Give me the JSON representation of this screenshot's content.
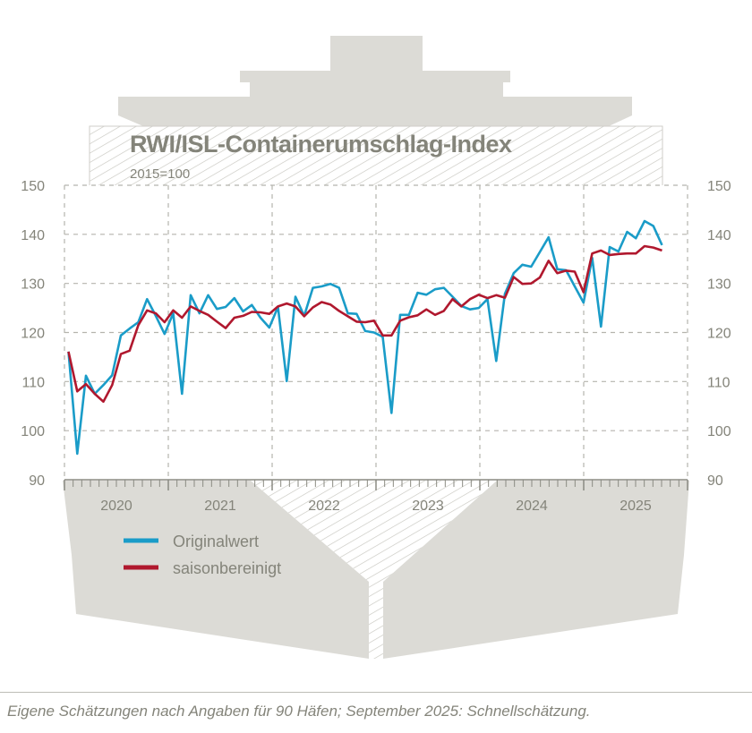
{
  "chart_data": {
    "type": "line",
    "title": "RWI/ISL-Containerumschlag-Index",
    "subtitle": "2015=100",
    "xlabel": "",
    "ylabel": "",
    "ylim": [
      90,
      150
    ],
    "yticks": [
      "90",
      "100",
      "110",
      "120",
      "130",
      "140",
      "150"
    ],
    "xtick_labels": [
      "2020",
      "2021",
      "2022",
      "2023",
      "2024",
      "2025"
    ],
    "x_start": "2020-01",
    "x_end": "2025-09",
    "frequency": "monthly",
    "grid": true,
    "legend_position": "bottom-left",
    "series": [
      {
        "name": "Originalwert",
        "color": "#1a9cc8",
        "values": [
          116.1,
          95.3,
          111.2,
          107.5,
          109.3,
          111.3,
          119.4,
          120.8,
          122.1,
          126.8,
          123.4,
          119.7,
          123.9,
          107.5,
          127.6,
          123.9,
          127.6,
          124.8,
          125.2,
          127.0,
          124.3,
          125.6,
          123.0,
          121.0,
          125.2,
          110.1,
          127.3,
          123.4,
          129.1,
          129.4,
          129.9,
          129.1,
          123.9,
          123.8,
          120.3,
          120.0,
          119.1,
          103.6,
          123.6,
          123.6,
          128.1,
          127.7,
          128.8,
          129.1,
          127.3,
          125.4,
          124.7,
          125.0,
          126.8,
          114.2,
          127.9,
          132.1,
          133.8,
          133.4,
          136.4,
          139.4,
          132.9,
          132.7,
          129.4,
          126.1,
          135.2,
          121.2,
          137.4,
          136.5,
          140.5,
          139.2,
          142.7,
          141.7,
          137.8
        ]
      },
      {
        "name": "saisonbereinigt",
        "color": "#b0182e",
        "values": [
          116.1,
          108.0,
          109.5,
          107.5,
          105.9,
          109.3,
          115.6,
          116.3,
          121.5,
          124.5,
          123.9,
          122.1,
          124.5,
          123.0,
          125.3,
          124.4,
          123.6,
          122.2,
          120.9,
          123.0,
          123.4,
          124.2,
          124.1,
          123.8,
          125.3,
          125.9,
          125.3,
          123.3,
          125.1,
          126.2,
          125.7,
          124.4,
          123.3,
          122.2,
          122.1,
          122.4,
          119.4,
          119.4,
          122.4,
          123.1,
          123.5,
          124.7,
          123.6,
          124.4,
          126.8,
          125.3,
          126.8,
          127.7,
          127.0,
          127.6,
          127.1,
          131.3,
          129.9,
          130.0,
          131.2,
          134.6,
          132.1,
          132.6,
          132.4,
          128.2,
          136.1,
          136.7,
          135.8,
          136.0,
          136.1,
          136.1,
          137.6,
          137.3,
          136.7
        ]
      }
    ]
  },
  "decoration": {
    "ship_color": "#dcdbd6",
    "text_color": "#84847a"
  },
  "footnote": "Eigene Schätzungen nach Angaben für 90 Häfen; September 2025: Schnellschätzung."
}
